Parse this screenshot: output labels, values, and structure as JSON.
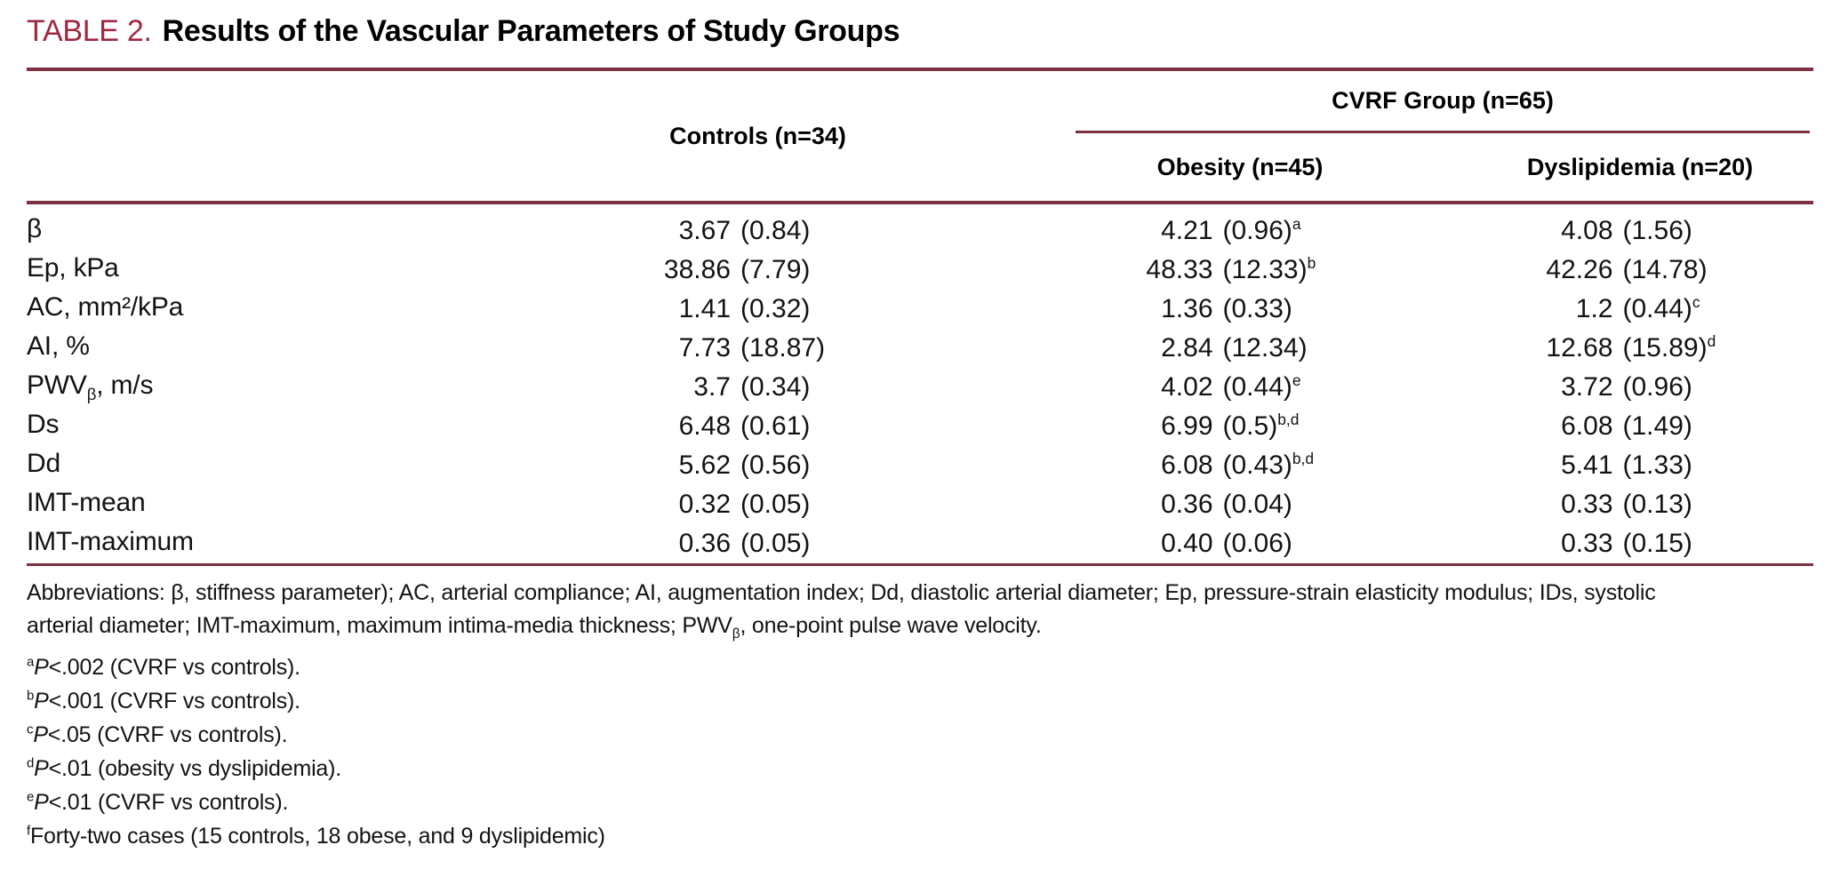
{
  "colors": {
    "accent_title": "#9e2a40",
    "accent_rule": "#7c3042"
  },
  "title": {
    "label": "TABLE 2.",
    "text": "Results of the Vascular Parameters of Study Groups"
  },
  "header": {
    "controls": "Controls (n=34)",
    "cvrf_group": "CVRF Group (n=65)",
    "obesity": "Obesity (n=45)",
    "dyslipidemia": "Dyslipidemia (n=20)"
  },
  "rows": [
    {
      "label": "β",
      "label_sub": "",
      "label_rest": "",
      "controls": {
        "mean": "3.67",
        "sd": "(0.84)",
        "sup": ""
      },
      "obesity": {
        "mean": "4.21",
        "sd": "(0.96)",
        "sup": "a"
      },
      "dyslipidemia": {
        "mean": "4.08",
        "sd": "(1.56)",
        "sup": ""
      }
    },
    {
      "label": "Ep, kPa",
      "label_sub": "",
      "label_rest": "",
      "controls": {
        "mean": "38.86",
        "sd": "(7.79)",
        "sup": ""
      },
      "obesity": {
        "mean": "48.33",
        "sd": "(12.33)",
        "sup": "b"
      },
      "dyslipidemia": {
        "mean": "42.26",
        "sd": "(14.78)",
        "sup": ""
      }
    },
    {
      "label": "AC, mm²/kPa",
      "label_sub": "",
      "label_rest": "",
      "controls": {
        "mean": "1.41",
        "sd": "(0.32)",
        "sup": ""
      },
      "obesity": {
        "mean": "1.36",
        "sd": "(0.33)",
        "sup": ""
      },
      "dyslipidemia": {
        "mean": "1.2",
        "sd": "(0.44)",
        "sup": "c"
      }
    },
    {
      "label": "AI, %",
      "label_sub": "",
      "label_rest": "",
      "controls": {
        "mean": "7.73",
        "sd": "(18.87)",
        "sup": ""
      },
      "obesity": {
        "mean": "2.84",
        "sd": "(12.34)",
        "sup": ""
      },
      "dyslipidemia": {
        "mean": "12.68",
        "sd": "(15.89)",
        "sup": "d"
      }
    },
    {
      "label": "PWV",
      "label_sub": "β",
      "label_rest": ", m/s",
      "controls": {
        "mean": "3.7",
        "sd": "(0.34)",
        "sup": ""
      },
      "obesity": {
        "mean": "4.02",
        "sd": "(0.44)",
        "sup": "e"
      },
      "dyslipidemia": {
        "mean": "3.72",
        "sd": "(0.96)",
        "sup": ""
      }
    },
    {
      "label": "Ds",
      "label_sub": "",
      "label_rest": "",
      "controls": {
        "mean": "6.48",
        "sd": "(0.61)",
        "sup": ""
      },
      "obesity": {
        "mean": "6.99",
        "sd": "(0.5)",
        "sup": "b,d"
      },
      "dyslipidemia": {
        "mean": "6.08",
        "sd": "(1.49)",
        "sup": ""
      }
    },
    {
      "label": "Dd",
      "label_sub": "",
      "label_rest": "",
      "controls": {
        "mean": "5.62",
        "sd": "(0.56)",
        "sup": ""
      },
      "obesity": {
        "mean": "6.08",
        "sd": "(0.43)",
        "sup": "b,d"
      },
      "dyslipidemia": {
        "mean": "5.41",
        "sd": "(1.33)",
        "sup": ""
      }
    },
    {
      "label": "IMT-mean",
      "label_sub": "",
      "label_rest": "",
      "controls": {
        "mean": "0.32",
        "sd": "(0.05)",
        "sup": ""
      },
      "obesity": {
        "mean": "0.36",
        "sd": "(0.04)",
        "sup": ""
      },
      "dyslipidemia": {
        "mean": "0.33",
        "sd": "(0.13)",
        "sup": ""
      }
    },
    {
      "label": "IMT-maximum",
      "label_sub": "",
      "label_rest": "",
      "controls": {
        "mean": "0.36",
        "sd": "(0.05)",
        "sup": ""
      },
      "obesity": {
        "mean": "0.40",
        "sd": "(0.06)",
        "sup": ""
      },
      "dyslipidemia": {
        "mean": "0.33",
        "sd": "(0.15)",
        "sup": ""
      }
    }
  ],
  "footnotes": {
    "abbreviations_line1": "Abbreviations: β, stiffness parameter); AC, arterial compliance; AI, augmentation index; Dd, diastolic arterial diameter; Ep, pressure-strain elasticity modulus; IDs, systolic",
    "abbreviations_line2_pre": "arterial diameter; IMT-maximum, maximum intima-media thickness; PWV",
    "abbreviations_line2_sub": "β",
    "abbreviations_line2_post": ", one-point pulse wave velocity.",
    "notes": [
      {
        "marker": "a",
        "p": "P",
        "text": "<.002 (CVRF vs controls)."
      },
      {
        "marker": "b",
        "p": "P",
        "text": "<.001 (CVRF vs controls)."
      },
      {
        "marker": "c",
        "p": "P",
        "text": "<.05 (CVRF vs controls)."
      },
      {
        "marker": "d",
        "p": "P",
        "text": "<.01 (obesity vs dyslipidemia)."
      },
      {
        "marker": "e",
        "p": "P",
        "text": "<.01 (CVRF vs controls)."
      },
      {
        "marker": "f",
        "p": "",
        "text": "Forty-two cases (15 controls, 18 obese, and 9 dyslipidemic)"
      }
    ]
  }
}
